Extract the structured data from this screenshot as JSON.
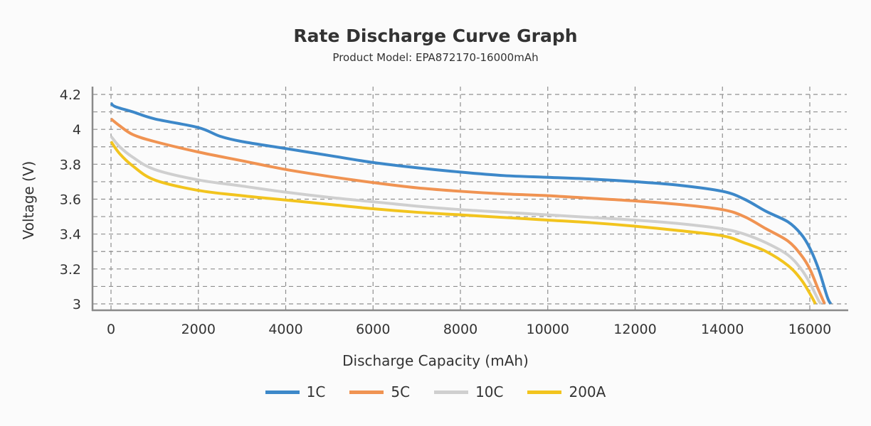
{
  "chart_data": {
    "type": "line",
    "title": "Rate Discharge Curve Graph",
    "subtitle": "Product Model: EPA872170-16000mAh",
    "xlabel": "Discharge Capacity (mAh)",
    "ylabel": "Voltage (V)",
    "xlim": [
      0,
      16000
    ],
    "ylim": [
      3.0,
      4.2
    ],
    "x_ticks": [
      0,
      2000,
      4000,
      6000,
      8000,
      10000,
      12000,
      14000,
      16000
    ],
    "x_tick_labels": [
      "0",
      "2000",
      "4000",
      "6000",
      "8000",
      "10000",
      "12000",
      "14000",
      "16000"
    ],
    "y_ticks": [
      3.0,
      3.2,
      3.4,
      3.6,
      3.8,
      4.0,
      4.2
    ],
    "y_tick_labels": [
      "3",
      "3.2",
      "3.4",
      "3.6",
      "3.8",
      "4",
      "4.2"
    ],
    "grid": true,
    "legend_position": "bottom",
    "series": [
      {
        "name": "1C",
        "color": "#3d88c9",
        "x": [
          0,
          100,
          500,
          1000,
          2000,
          2500,
          3000,
          4000,
          5000,
          6000,
          7000,
          8000,
          9000,
          10000,
          11000,
          12000,
          13000,
          14000,
          14500,
          15000,
          15500,
          15800,
          16000,
          16200,
          16400,
          16480
        ],
        "y": [
          4.15,
          4.13,
          4.1,
          4.06,
          4.01,
          3.96,
          3.93,
          3.89,
          3.85,
          3.81,
          3.78,
          3.755,
          3.735,
          3.725,
          3.715,
          3.7,
          3.68,
          3.645,
          3.6,
          3.53,
          3.47,
          3.4,
          3.32,
          3.2,
          3.04,
          3.0
        ]
      },
      {
        "name": "5C",
        "color": "#f09352",
        "x": [
          0,
          200,
          500,
          1000,
          2000,
          3000,
          4000,
          5000,
          6000,
          7000,
          8000,
          9000,
          10000,
          11000,
          12000,
          13000,
          14000,
          14500,
          15000,
          15500,
          15800,
          16000,
          16200,
          16340
        ],
        "y": [
          4.06,
          4.02,
          3.97,
          3.93,
          3.87,
          3.82,
          3.77,
          3.73,
          3.695,
          3.665,
          3.645,
          3.63,
          3.62,
          3.605,
          3.59,
          3.57,
          3.54,
          3.5,
          3.43,
          3.36,
          3.28,
          3.2,
          3.08,
          3.0
        ]
      },
      {
        "name": "10C",
        "color": "#cfcfcf",
        "x": [
          0,
          200,
          500,
          1000,
          2000,
          3000,
          4000,
          5000,
          6000,
          7000,
          8000,
          9000,
          10000,
          11000,
          12000,
          13000,
          14000,
          14500,
          15000,
          15500,
          15800,
          16000,
          16200,
          16260
        ],
        "y": [
          3.96,
          3.9,
          3.84,
          3.77,
          3.71,
          3.675,
          3.64,
          3.61,
          3.585,
          3.56,
          3.54,
          3.525,
          3.51,
          3.495,
          3.48,
          3.46,
          3.43,
          3.4,
          3.35,
          3.28,
          3.2,
          3.12,
          3.02,
          3.0
        ]
      },
      {
        "name": "200A",
        "color": "#f2c41e",
        "x": [
          0,
          200,
          500,
          1000,
          2000,
          3000,
          4000,
          5000,
          6000,
          7000,
          8000,
          9000,
          10000,
          11000,
          12000,
          13000,
          14000,
          14500,
          15000,
          15500,
          15800,
          16000,
          16130
        ],
        "y": [
          3.93,
          3.86,
          3.79,
          3.71,
          3.65,
          3.62,
          3.595,
          3.57,
          3.545,
          3.525,
          3.51,
          3.495,
          3.48,
          3.465,
          3.445,
          3.42,
          3.39,
          3.35,
          3.3,
          3.22,
          3.14,
          3.06,
          3.0
        ]
      }
    ]
  }
}
